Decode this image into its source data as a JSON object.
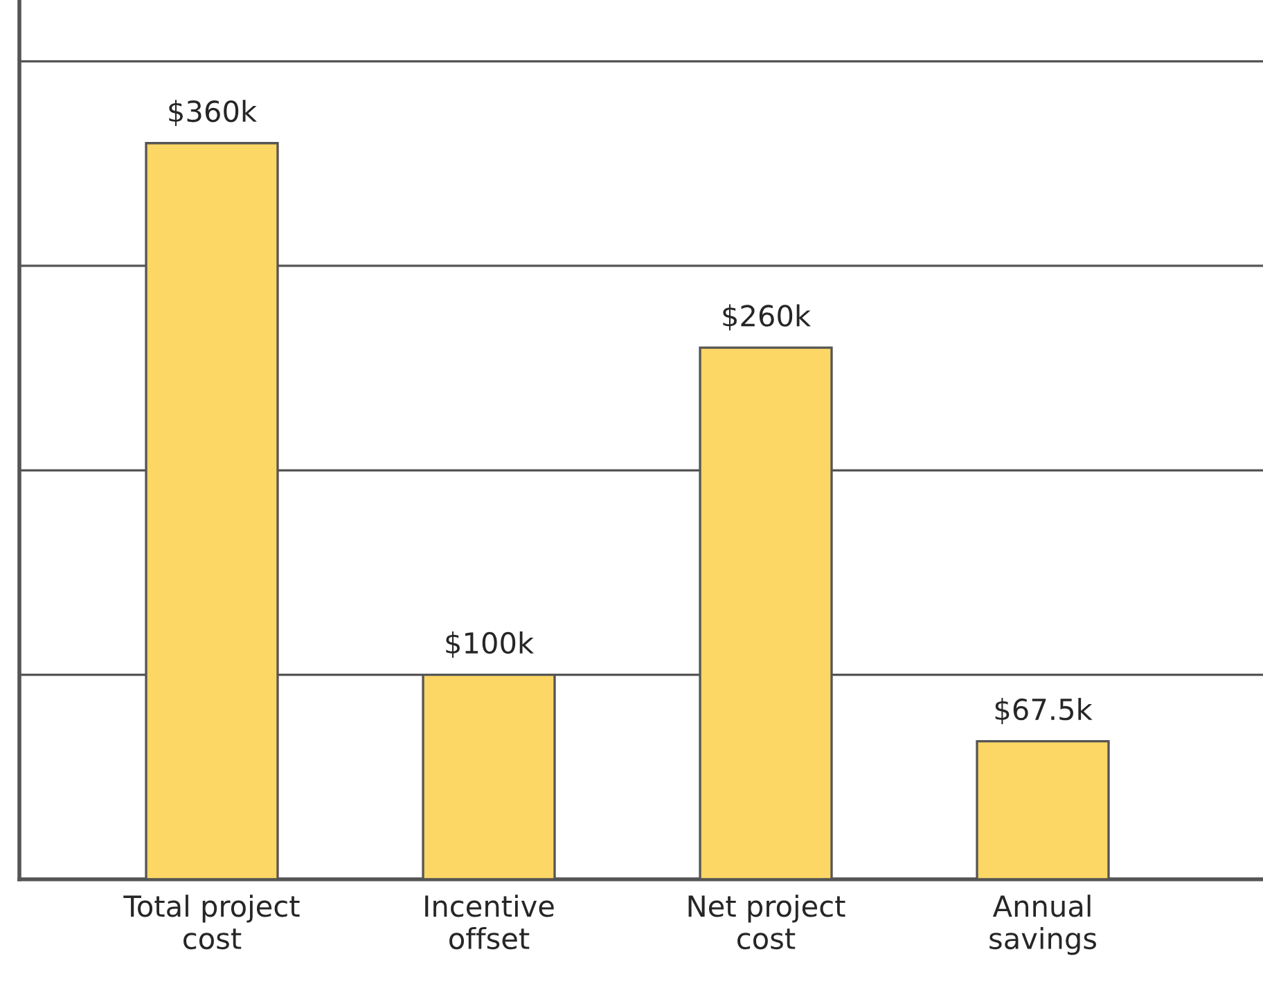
{
  "chart_data": {
    "type": "bar",
    "categories": [
      "Total project\ncost",
      "Incentive\noffset",
      "Net project\ncost",
      "Annual\nsavings"
    ],
    "values": [
      360,
      100,
      260,
      67.5
    ],
    "value_labels": [
      "$360k",
      "$100k",
      "$260k",
      "$67.5k"
    ],
    "color": "#fcd765",
    "ylim": [
      0,
      430
    ],
    "yticks": [
      {
        "value": 100,
        "label": null
      },
      {
        "value": 200,
        "label": null
      },
      {
        "value": 300,
        "label": null
      },
      {
        "value": 400,
        "label": null
      }
    ],
    "grid": "y"
  }
}
